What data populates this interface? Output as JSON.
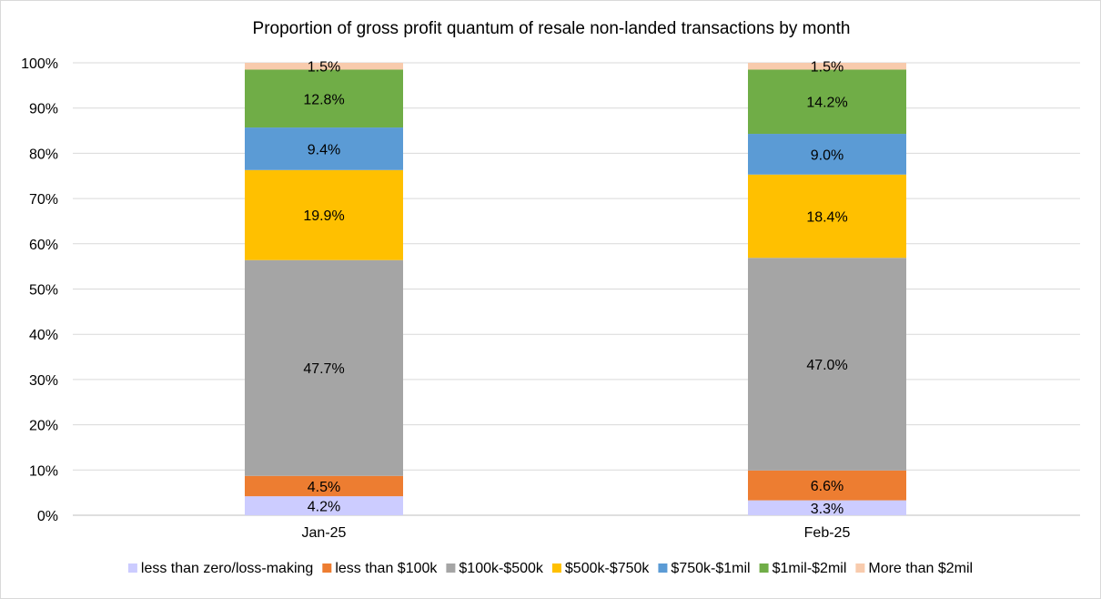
{
  "chart_data": {
    "type": "bar",
    "stacked": true,
    "title": "Proportion of gross profit quantum of resale non-landed transactions by month",
    "categories": [
      "Jan-25",
      "Feb-25"
    ],
    "y_ticks": [
      "0%",
      "10%",
      "20%",
      "30%",
      "40%",
      "50%",
      "60%",
      "70%",
      "80%",
      "90%",
      "100%"
    ],
    "ylim": [
      0,
      100
    ],
    "grid": true,
    "legend_position": "bottom",
    "series": [
      {
        "name": "less than zero/loss-making",
        "color": "#ccccff",
        "values": [
          4.2,
          3.3
        ],
        "labels": [
          "4.2%",
          "3.3%"
        ]
      },
      {
        "name": "less than $100k",
        "color": "#ed7d31",
        "values": [
          4.5,
          6.6
        ],
        "labels": [
          "4.5%",
          "6.6%"
        ]
      },
      {
        "name": "$100k-$500k",
        "color": "#a5a5a5",
        "values": [
          47.7,
          47.0
        ],
        "labels": [
          "47.7%",
          "47.0%"
        ]
      },
      {
        "name": "$500k-$750k",
        "color": "#ffc000",
        "values": [
          19.9,
          18.4
        ],
        "labels": [
          "19.9%",
          "18.4%"
        ]
      },
      {
        "name": "$750k-$1mil",
        "color": "#5b9bd5",
        "values": [
          9.4,
          9.0
        ],
        "labels": [
          "9.4%",
          "9.0%"
        ]
      },
      {
        "name": "$1mil-$2mil",
        "color": "#70ad47",
        "values": [
          12.8,
          14.2
        ],
        "labels": [
          "12.8%",
          "14.2%"
        ]
      },
      {
        "name": "More than $2mil",
        "color": "#f8cbad",
        "values": [
          1.5,
          1.5
        ],
        "labels": [
          "1.5%",
          "1.5%"
        ]
      }
    ]
  }
}
